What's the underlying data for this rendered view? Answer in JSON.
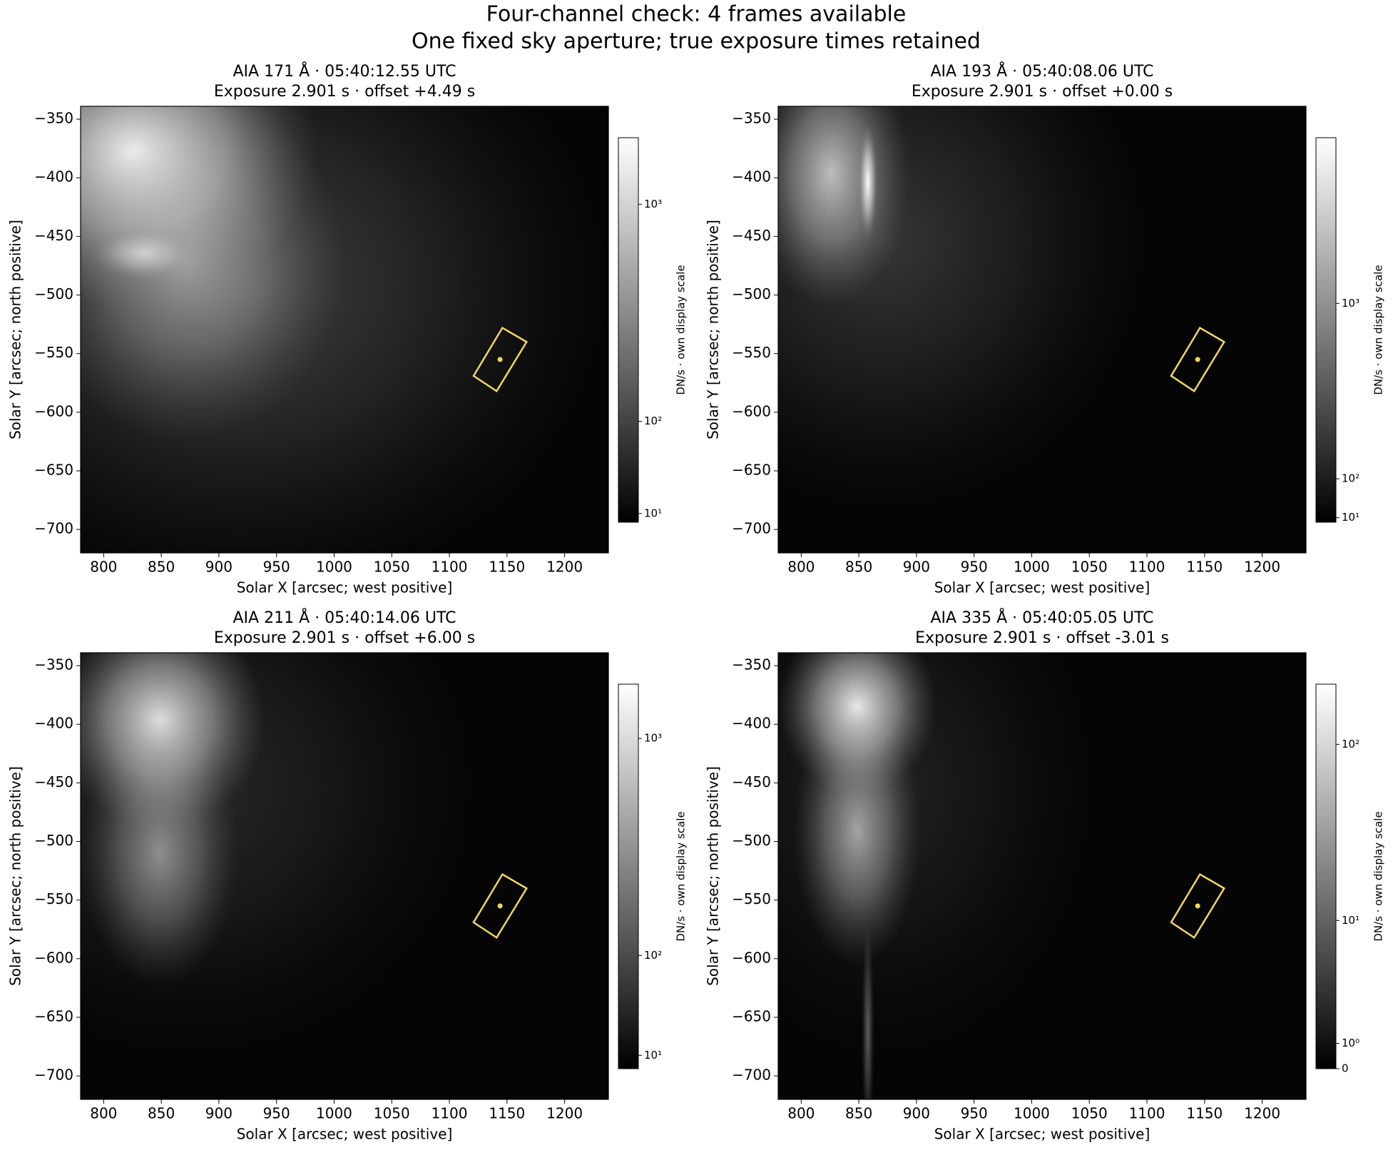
{
  "title": "Four-channel check: 4 frames available",
  "subtitle": "One fixed sky aperture; true exposure times retained",
  "chart_data": [
    {
      "type": "image",
      "title": "AIA 171 Å · 05:40:12.55 UTC",
      "subtitle": "Exposure 2.901 s · offset +4.49 s",
      "xlabel": "Solar X [arcsec; west positive]",
      "ylabel": "Solar Y [arcsec; north positive]",
      "xlim": [
        780,
        1238
      ],
      "ylim": [
        -720,
        -339
      ],
      "xticks": [
        800,
        850,
        900,
        950,
        1000,
        1050,
        1100,
        1150,
        1200
      ],
      "yticks": [
        {
          "value": -350,
          "label": "−350"
        },
        {
          "value": -400,
          "label": "−400"
        },
        {
          "value": -450,
          "label": "−450"
        },
        {
          "value": -500,
          "label": "−500"
        },
        {
          "value": -550,
          "label": "−550"
        },
        {
          "value": -600,
          "label": "−600"
        },
        {
          "value": -650,
          "label": "−650"
        },
        {
          "value": -700,
          "label": "−700"
        }
      ],
      "colormap": "gray",
      "colorbar": {
        "label": "DN/s · own display scale",
        "scale": "asinh",
        "linear_width": 80,
        "clim": [
          3,
          1950
        ],
        "ticks": [
          {
            "value": 10,
            "label": "10¹"
          },
          {
            "value": 100,
            "label": "10²"
          },
          {
            "value": 1000,
            "label": "10³"
          }
        ]
      },
      "aperture": {
        "color": "#f0d860",
        "x": [
          1146,
          1167,
          1141,
          1121
        ],
        "y": [
          -528,
          -540,
          -582,
          -569
        ],
        "center": [
          1144,
          -555
        ]
      }
    },
    {
      "type": "image",
      "title": "AIA 193 Å · 05:40:08.06 UTC",
      "subtitle": "Exposure 2.901 s · offset +0.00 s",
      "xlabel": "Solar X [arcsec; west positive]",
      "ylabel": "Solar Y [arcsec; north positive]",
      "xlim": [
        780,
        1238
      ],
      "ylim": [
        -720,
        -339
      ],
      "xticks": [
        800,
        850,
        900,
        950,
        1000,
        1050,
        1100,
        1150,
        1200
      ],
      "yticks": [
        {
          "value": -350,
          "label": "−350"
        },
        {
          "value": -400,
          "label": "−400"
        },
        {
          "value": -450,
          "label": "−450"
        },
        {
          "value": -500,
          "label": "−500"
        },
        {
          "value": -550,
          "label": "−550"
        },
        {
          "value": -600,
          "label": "−600"
        },
        {
          "value": -650,
          "label": "−650"
        },
        {
          "value": -700,
          "label": "−700"
        }
      ],
      "colormap": "gray",
      "colorbar": {
        "label": "DN/s · own display scale",
        "scale": "asinh",
        "linear_width": 220,
        "clim": [
          0,
          5430
        ],
        "ticks": [
          {
            "value": 10,
            "label": "10¹"
          },
          {
            "value": 100,
            "label": "10²"
          },
          {
            "value": 1000,
            "label": "10³"
          }
        ]
      },
      "aperture": {
        "color": "#f0d860",
        "x": [
          1146,
          1167,
          1141,
          1121
        ],
        "y": [
          -528,
          -540,
          -582,
          -569
        ],
        "center": [
          1144,
          -555
        ]
      }
    },
    {
      "type": "image",
      "title": "AIA 211 Å · 05:40:14.06 UTC",
      "subtitle": "Exposure 2.901 s · offset +6.00 s",
      "xlabel": "Solar X [arcsec; west positive]",
      "ylabel": "Solar Y [arcsec; north positive]",
      "xlim": [
        780,
        1238
      ],
      "ylim": [
        -720,
        -339
      ],
      "xticks": [
        800,
        850,
        900,
        950,
        1000,
        1050,
        1100,
        1150,
        1200
      ],
      "yticks": [
        {
          "value": -350,
          "label": "−350"
        },
        {
          "value": -400,
          "label": "−400"
        },
        {
          "value": -450,
          "label": "−450"
        },
        {
          "value": -500,
          "label": "−500"
        },
        {
          "value": -550,
          "label": "−550"
        },
        {
          "value": -600,
          "label": "−600"
        },
        {
          "value": -650,
          "label": "−650"
        },
        {
          "value": -700,
          "label": "−700"
        }
      ],
      "colormap": "gray",
      "colorbar": {
        "label": "DN/s · own display scale",
        "scale": "asinh",
        "linear_width": 70,
        "clim": [
          0.5,
          1735
        ],
        "ticks": [
          {
            "value": 10,
            "label": "10¹"
          },
          {
            "value": 100,
            "label": "10²"
          },
          {
            "value": 1000,
            "label": "10³"
          }
        ]
      },
      "aperture": {
        "color": "#f0d860",
        "x": [
          1146,
          1167,
          1141,
          1121
        ],
        "y": [
          -528,
          -540,
          -582,
          -569
        ],
        "center": [
          1144,
          -555
        ]
      }
    },
    {
      "type": "image",
      "title": "AIA 335 Å · 05:40:05.05 UTC",
      "subtitle": "Exposure 2.901 s · offset -3.01 s",
      "xlabel": "Solar X [arcsec; west positive]",
      "ylabel": "Solar Y [arcsec; north positive]",
      "xlim": [
        780,
        1238
      ],
      "ylim": [
        -720,
        -339
      ],
      "xticks": [
        800,
        850,
        900,
        950,
        1000,
        1050,
        1100,
        1150,
        1200
      ],
      "yticks": [
        {
          "value": -350,
          "label": "−350"
        },
        {
          "value": -400,
          "label": "−400"
        },
        {
          "value": -450,
          "label": "−450"
        },
        {
          "value": -500,
          "label": "−500"
        },
        {
          "value": -550,
          "label": "−550"
        },
        {
          "value": -600,
          "label": "−600"
        },
        {
          "value": -650,
          "label": "−650"
        },
        {
          "value": -700,
          "label": "−700"
        }
      ],
      "colormap": "gray",
      "colorbar": {
        "label": "DN/s · own display scale",
        "scale": "asinh",
        "linear_width": 3,
        "clim": [
          0,
          218
        ],
        "ticks": [
          0,
          {
            "value": 1,
            "label": "10⁰"
          },
          {
            "value": 10,
            "label": "10¹"
          },
          {
            "value": 100,
            "label": "10²"
          }
        ]
      },
      "aperture": {
        "color": "#f0d860",
        "x": [
          1146,
          1167,
          1141,
          1121
        ],
        "y": [
          -528,
          -540,
          -582,
          -569
        ],
        "center": [
          1144,
          -555
        ]
      }
    }
  ]
}
